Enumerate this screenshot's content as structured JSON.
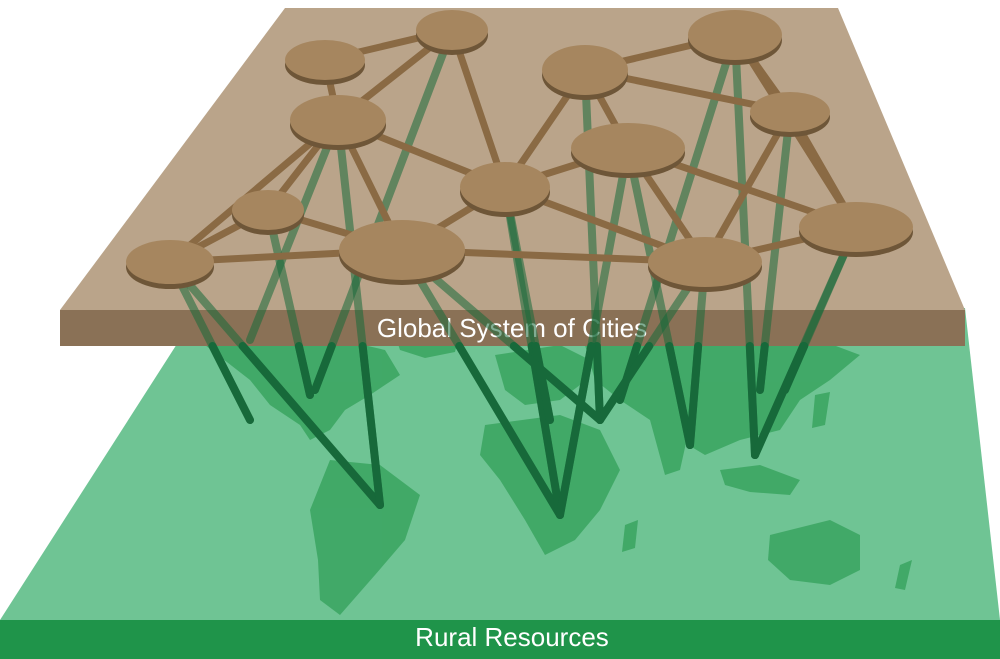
{
  "top_layer": {
    "label": "Global System of Cities",
    "plane_color": "#baa48a",
    "band_color": "#8a7156",
    "node_color": "#a6865f",
    "edge_color": "#8a6a44"
  },
  "bottom_layer": {
    "label": "Rural Resources",
    "plane_color": "#6fc494",
    "band_color": "#1f944a",
    "land_color": "#39a35f"
  },
  "link_color": "#17693a",
  "city_network": {
    "node_count": 14,
    "nodes": [
      "n1",
      "n2",
      "n3",
      "n4",
      "n5",
      "n6",
      "n7",
      "n8",
      "n9",
      "n10",
      "n11",
      "n12",
      "n13",
      "n14"
    ]
  }
}
